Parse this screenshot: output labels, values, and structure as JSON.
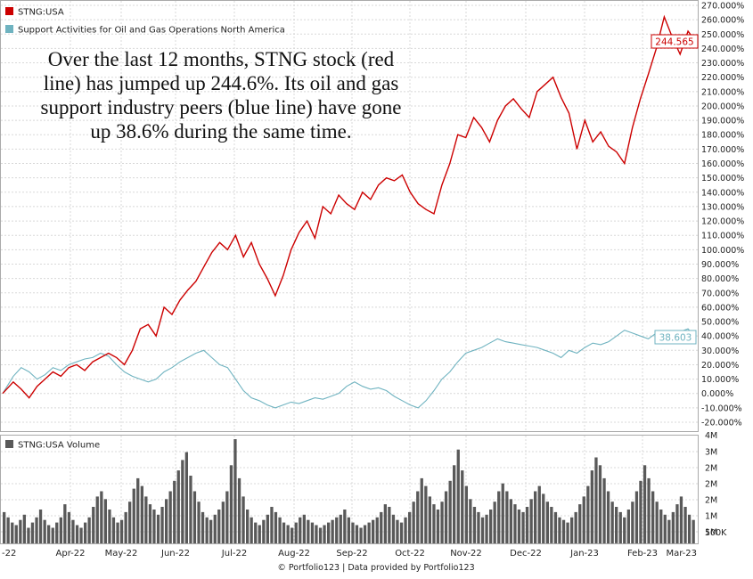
{
  "chart_data": [
    {
      "type": "line",
      "legend": [
        "STNG:USA",
        "Support Activities for Oil and Gas Operations North America"
      ],
      "colors": {
        "stng": "#cc0000",
        "peers": "#6fb3c0"
      },
      "annotation": [
        "Over the last 12 months, STNG stock (red",
        "line) has jumped up 244.6%. Its oil and gas",
        "support industry peers (blue line) have gone",
        "up 38.6% during the same time."
      ],
      "y_unit": "%",
      "ylim": [
        -22,
        270
      ],
      "y_ticks": [
        "270.000%",
        "260.000%",
        "250.000%",
        "240.000%",
        "230.000%",
        "220.000%",
        "210.000%",
        "200.000%",
        "190.000%",
        "180.000%",
        "170.000%",
        "160.000%",
        "150.000%",
        "140.000%",
        "130.000%",
        "120.000%",
        "110.000%",
        "100.000%",
        "90.000%",
        "80.000%",
        "70.000%",
        "60.000%",
        "50.000%",
        "40.000%",
        "30.000%",
        "20.000%",
        "10.000%",
        "0.000%",
        "-10.000%",
        "-20.000%"
      ],
      "x_ticks": [
        "-22",
        "Apr-22",
        "May-22",
        "Jun-22",
        "Jul-22",
        "Aug-22",
        "Sep-22",
        "Oct-22",
        "Nov-22",
        "Dec-22",
        "Jan-23",
        "Feb-23",
        "Mar-23"
      ],
      "series": [
        {
          "name": "STNG:USA",
          "end_label": "244.565",
          "x_index": [
            0,
            4,
            7,
            10,
            13,
            16,
            19,
            22,
            25,
            28,
            31,
            34,
            37,
            40,
            43,
            46,
            49,
            52,
            55,
            58,
            61,
            64,
            67,
            70,
            73,
            76,
            79,
            82,
            85,
            88,
            91,
            94,
            97,
            100,
            103,
            106,
            109,
            112,
            115,
            118,
            121,
            124,
            127,
            130,
            133,
            136,
            139,
            142,
            145,
            148,
            151,
            154,
            157,
            160,
            163,
            166,
            169,
            172,
            175,
            178,
            181,
            184,
            187,
            190,
            193,
            196,
            199,
            202,
            205,
            208,
            211,
            214,
            217,
            220,
            223,
            226,
            229,
            232,
            235,
            238,
            241,
            244,
            247,
            250,
            253,
            256,
            259,
            262
          ],
          "values": [
            0,
            8,
            3,
            -3,
            5,
            10,
            15,
            12,
            18,
            20,
            16,
            22,
            25,
            28,
            25,
            20,
            30,
            45,
            48,
            40,
            60,
            55,
            65,
            72,
            78,
            88,
            98,
            105,
            100,
            110,
            95,
            105,
            90,
            80,
            68,
            82,
            100,
            112,
            120,
            108,
            130,
            125,
            138,
            132,
            128,
            140,
            135,
            145,
            150,
            148,
            152,
            140,
            132,
            128,
            125,
            145,
            160,
            180,
            178,
            192,
            185,
            175,
            190,
            200,
            205,
            198,
            192,
            210,
            215,
            220,
            206,
            195,
            170,
            190,
            175,
            182,
            172,
            168,
            160,
            185,
            205,
            222,
            240,
            262,
            248,
            236,
            252,
            244.565
          ]
        },
        {
          "name": "Support Activities for Oil and Gas Operations North America",
          "end_label": "38.603",
          "x_index": [
            0,
            4,
            7,
            10,
            13,
            16,
            19,
            22,
            25,
            28,
            31,
            34,
            37,
            40,
            43,
            46,
            49,
            52,
            55,
            58,
            61,
            64,
            67,
            70,
            73,
            76,
            79,
            82,
            85,
            88,
            91,
            94,
            97,
            100,
            103,
            106,
            109,
            112,
            115,
            118,
            121,
            124,
            127,
            130,
            133,
            136,
            139,
            142,
            145,
            148,
            151,
            154,
            157,
            160,
            163,
            166,
            169,
            172,
            175,
            178,
            181,
            184,
            187,
            190,
            193,
            196,
            199,
            202,
            205,
            208,
            211,
            214,
            217,
            220,
            223,
            226,
            229,
            232,
            235,
            238,
            241,
            244,
            247,
            250,
            253,
            256,
            259,
            262
          ],
          "values": [
            0,
            12,
            18,
            15,
            10,
            13,
            18,
            16,
            20,
            22,
            24,
            25,
            28,
            26,
            20,
            15,
            12,
            10,
            8,
            10,
            15,
            18,
            22,
            25,
            28,
            30,
            25,
            20,
            18,
            10,
            2,
            -3,
            -5,
            -8,
            -10,
            -8,
            -6,
            -7,
            -5,
            -3,
            -4,
            -2,
            0,
            5,
            8,
            5,
            3,
            4,
            2,
            -2,
            -5,
            -8,
            -10,
            -5,
            2,
            10,
            15,
            22,
            28,
            30,
            32,
            35,
            38,
            36,
            35,
            34,
            33,
            32,
            30,
            28,
            25,
            30,
            28,
            32,
            35,
            34,
            36,
            40,
            44,
            42,
            40,
            38,
            42,
            40,
            38,
            43,
            45,
            38.603
          ]
        }
      ]
    },
    {
      "type": "bar",
      "title": "STNG:USA Volume",
      "color": "#595959",
      "ylim": [
        0,
        4000000
      ],
      "y_ticks": [
        "4M",
        "3M",
        "2M",
        "2M",
        "2M",
        "1M",
        "1M",
        "500K"
      ],
      "values": [
        1.2,
        1.0,
        0.8,
        0.7,
        0.9,
        1.1,
        0.6,
        0.8,
        1.0,
        1.3,
        0.9,
        0.7,
        0.6,
        0.8,
        1.0,
        1.5,
        1.2,
        0.9,
        0.7,
        0.6,
        0.8,
        1.0,
        1.4,
        1.8,
        2.0,
        1.7,
        1.3,
        1.0,
        0.8,
        0.9,
        1.2,
        1.6,
        2.1,
        2.5,
        2.2,
        1.8,
        1.5,
        1.3,
        1.1,
        1.4,
        1.7,
        2.0,
        2.4,
        2.8,
        3.2,
        3.5,
        2.6,
        2.0,
        1.6,
        1.2,
        1.0,
        0.9,
        1.1,
        1.3,
        1.6,
        2.0,
        3.0,
        4.0,
        2.5,
        1.8,
        1.3,
        1.0,
        0.8,
        0.7,
        0.9,
        1.1,
        1.4,
        1.2,
        1.0,
        0.8,
        0.7,
        0.6,
        0.8,
        1.0,
        1.1,
        0.9,
        0.8,
        0.7,
        0.6,
        0.7,
        0.8,
        0.9,
        1.0,
        1.1,
        1.3,
        1.0,
        0.8,
        0.7,
        0.6,
        0.7,
        0.8,
        0.9,
        1.0,
        1.2,
        1.5,
        1.4,
        1.1,
        0.9,
        0.8,
        1.0,
        1.2,
        1.6,
        2.0,
        2.5,
        2.2,
        1.8,
        1.5,
        1.3,
        1.6,
        2.0,
        2.4,
        3.0,
        3.6,
        2.8,
        2.2,
        1.7,
        1.4,
        1.2,
        1.0,
        1.1,
        1.3,
        1.6,
        2.0,
        2.3,
        2.0,
        1.7,
        1.5,
        1.3,
        1.2,
        1.4,
        1.7,
        2.0,
        2.2,
        1.9,
        1.6,
        1.4,
        1.2,
        1.0,
        0.9,
        0.8,
        1.0,
        1.2,
        1.5,
        1.8,
        2.2,
        2.8,
        3.3,
        3.0,
        2.5,
        2.0,
        1.6,
        1.4,
        1.2,
        1.0,
        1.3,
        1.6,
        2.0,
        2.4,
        3.0,
        2.5,
        2.0,
        1.6,
        1.3,
        1.1,
        0.9,
        1.2,
        1.5,
        1.8,
        1.4,
        1.1,
        0.9
      ]
    }
  ],
  "footer": "© Portfolio123 | Data provided by Portfolio123"
}
